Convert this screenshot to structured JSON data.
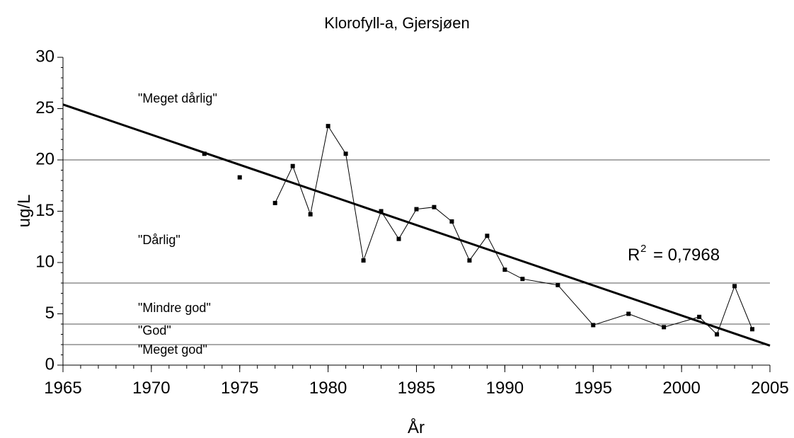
{
  "chart_data": {
    "type": "line",
    "title": "Klorofyll-a, Gjersjøen",
    "x_label": "År",
    "y_label": "ug/L",
    "xlim": [
      1965,
      2005
    ],
    "xticks": [
      1965,
      1970,
      1975,
      1980,
      1985,
      1990,
      1995,
      2000,
      2005
    ],
    "ylim": [
      0,
      30
    ],
    "yticks": [
      0,
      5,
      10,
      15,
      20,
      25,
      30
    ],
    "series": [
      {
        "color": "#000000",
        "x": [
          1973,
          1974,
          1975,
          1976,
          1977,
          1978,
          1979,
          1980,
          1981,
          1982,
          1983,
          1984,
          1985,
          1986,
          1987,
          1988,
          1989,
          1990,
          1991,
          1993,
          1995,
          1997,
          1999,
          2001,
          2002,
          2003,
          2004
        ],
        "values": [
          20.6,
          null,
          18.3,
          null,
          15.8,
          19.4,
          14.7,
          23.3,
          20.6,
          10.2,
          15.0,
          12.3,
          15.2,
          15.4,
          14.0,
          10.2,
          12.6,
          9.3,
          8.4,
          7.8,
          3.9,
          5.0,
          3.7,
          4.7,
          3.0,
          7.7,
          3.5
        ]
      }
    ],
    "trendline": {
      "x": [
        1965,
        2005
      ],
      "values": [
        25.4,
        1.9
      ],
      "color": "#000000"
    },
    "r_squared": {
      "base": "R",
      "sup": "2",
      "rest": "= 0,7968"
    },
    "thresholds": [
      20,
      8,
      4,
      2
    ],
    "classes": [
      "\"Meget dårlig\"",
      "\"Dårlig\"",
      "\"Mindre god\"",
      "\"God\"",
      "\"Meget god\""
    ]
  }
}
